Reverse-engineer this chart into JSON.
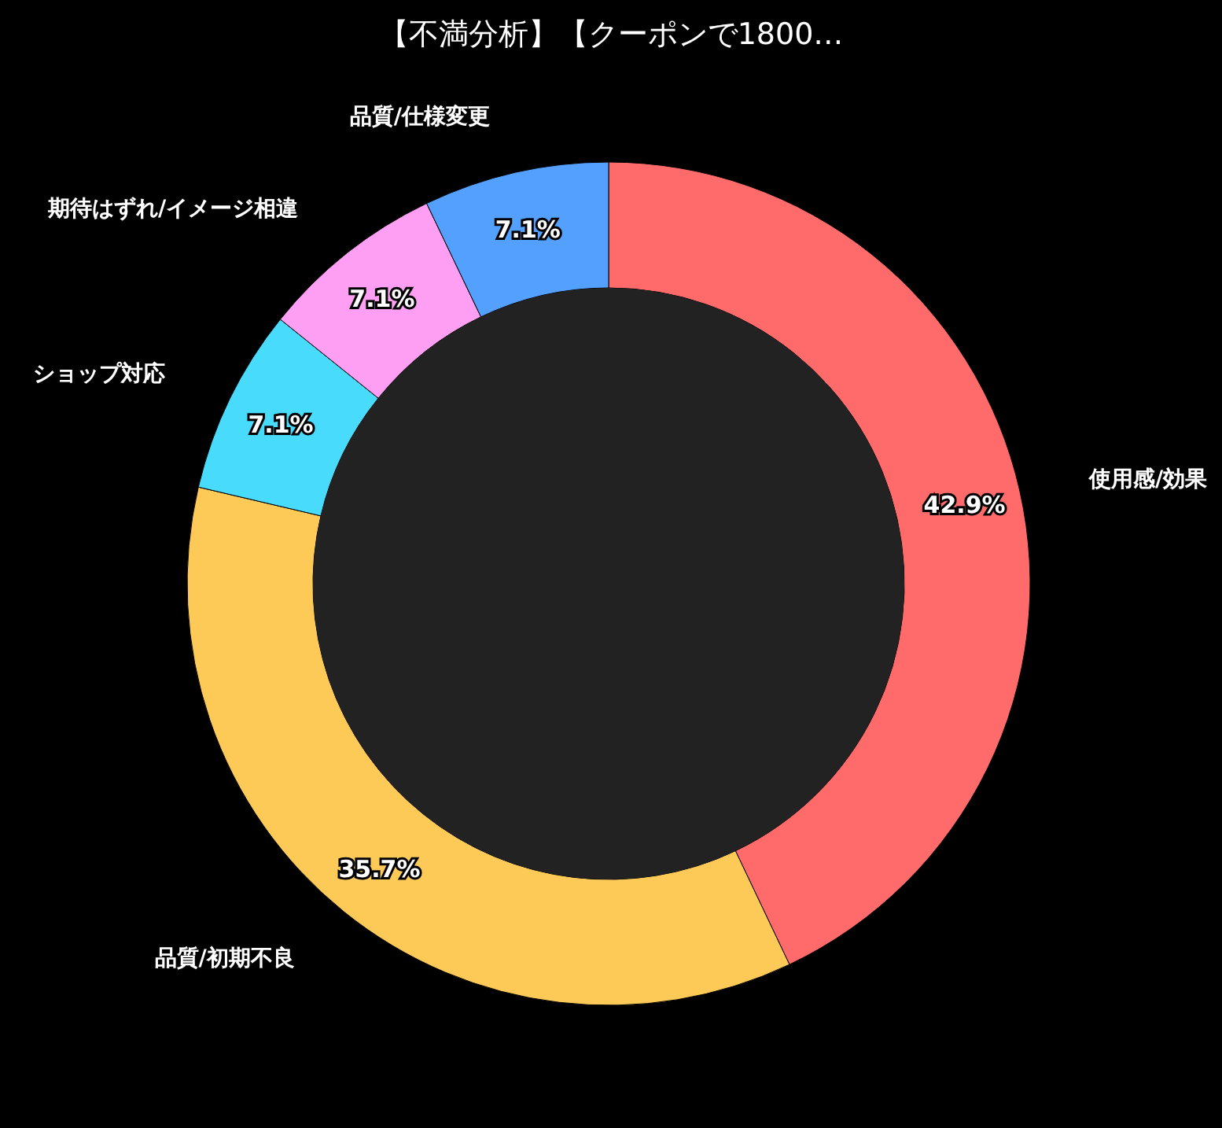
{
  "chart_data": {
    "type": "donut",
    "title": "【不満分析】【クーポンで1800…",
    "categories": [
      "使用感/効果",
      "品質/初期不良",
      "ショップ対応",
      "期待はずれ/イメージ相違",
      "品質/仕様変更"
    ],
    "values": [
      42.9,
      35.7,
      7.1,
      7.1,
      7.1
    ],
    "colors": [
      "#ff6b6b",
      "#feca57",
      "#48dbfb",
      "#ff9ff3",
      "#54a0ff"
    ],
    "value_labels": [
      "42.9%",
      "35.7%",
      "7.1%",
      "7.1%",
      "7.1%"
    ]
  }
}
